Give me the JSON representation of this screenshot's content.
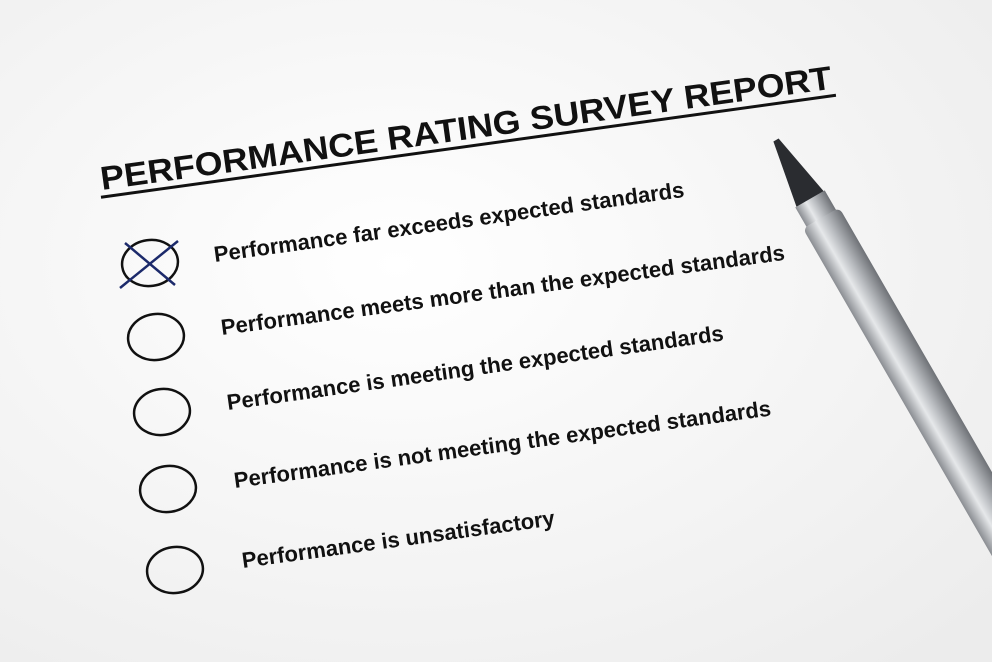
{
  "title": "PERFORMANCE RATING SURVEY REPORT",
  "options": [
    "Performance far exceeds expected standards",
    "Performance meets more than the expected standards",
    "Performance is meeting the expected standards",
    "Performance is not meeting the expected standards",
    "Performance is unsatisfactory"
  ],
  "selected_option": 0
}
